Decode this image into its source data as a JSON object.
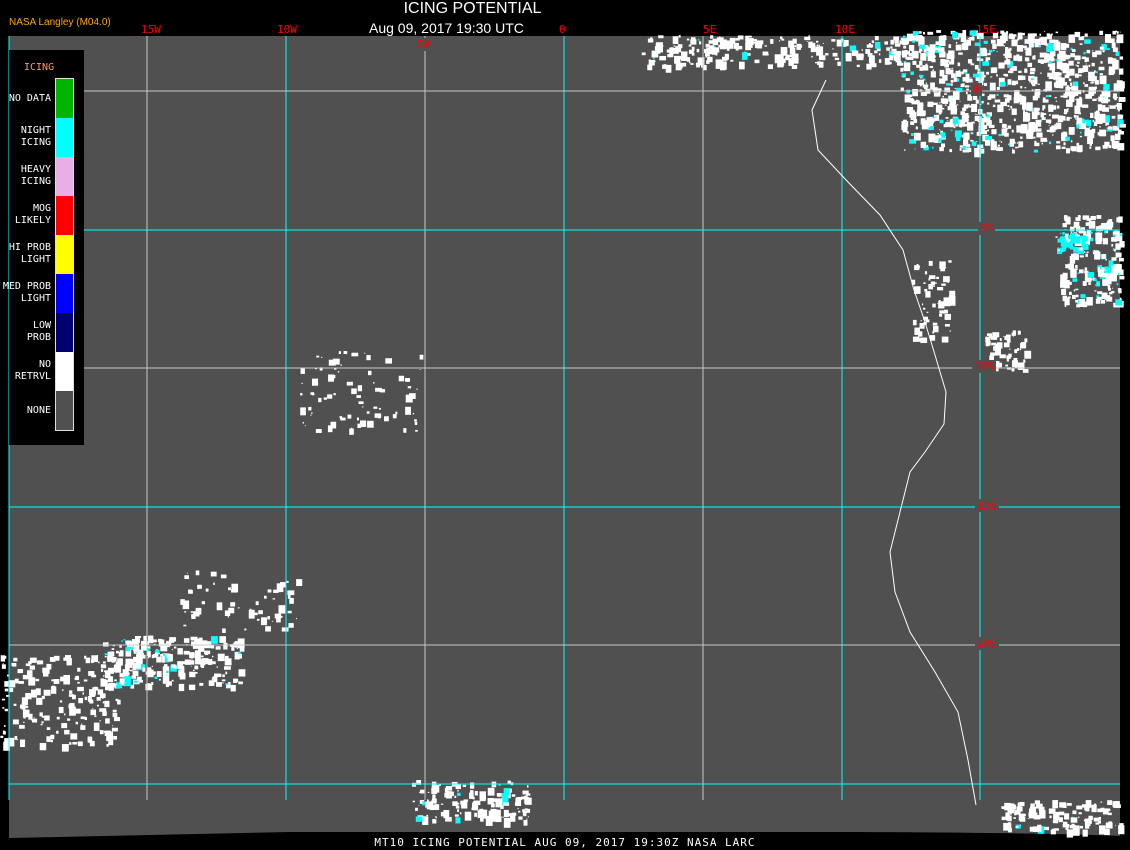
{
  "header": {
    "title": "ICING POTENTIAL",
    "subtitle": "Aug 09, 2017 19:30 UTC",
    "agency": "NASA Langley (M04.0)"
  },
  "longitude_labels": [
    "15W",
    "10W",
    "5W",
    "0",
    "5E",
    "10E",
    "15E"
  ],
  "latitude_labels": [
    "0",
    "5S",
    "10S",
    "15S",
    "20S"
  ],
  "legend": {
    "title": "ICING",
    "items": [
      {
        "label": "NO DATA",
        "color": "#00b400"
      },
      {
        "label": "NIGHT\nICING",
        "color": "#00ffff"
      },
      {
        "label": "HEAVY\nICING",
        "color": "#e8aee6"
      },
      {
        "label": "MOG\nLIKELY",
        "color": "#ff0000"
      },
      {
        "label": "HI PROB\nLIGHT",
        "color": "#ffff00"
      },
      {
        "label": "MED PROB\nLIGHT",
        "color": "#0000ff"
      },
      {
        "label": "LOW\nPROB",
        "color": "#000070"
      },
      {
        "label": "NO\nRETRVL",
        "color": "#ffffff"
      },
      {
        "label": "NONE",
        "color": "#505050"
      }
    ]
  },
  "colors": {
    "background": "#505050",
    "grid_primary": "#00ffff",
    "grid_secondary": "#c8c8c8",
    "coastline": "#ffffff",
    "labels": "#ff0000"
  },
  "footer": "MT10  ICING POTENTIAL   AUG 09, 2017 19:30Z   NASA LARC"
}
